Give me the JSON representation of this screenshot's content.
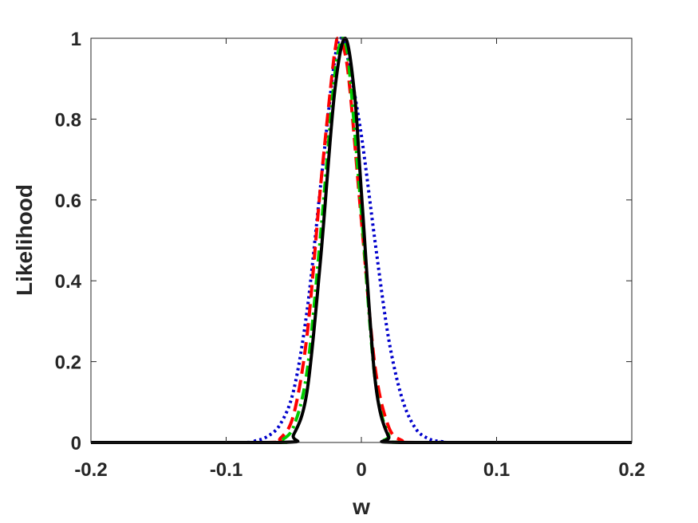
{
  "chart_data": {
    "type": "line",
    "title": "",
    "xlabel": "w",
    "ylabel": "Likelihood",
    "xlim": [
      -0.2,
      0.2
    ],
    "ylim": [
      0,
      1
    ],
    "grid": false,
    "box": true,
    "x_ticks": [
      -0.2,
      -0.1,
      0,
      0.1,
      0.2
    ],
    "x_tick_labels": [
      "-0.2",
      "-0.1",
      "0",
      "0.1",
      "0.2"
    ],
    "y_ticks": [
      0,
      0.2,
      0.4,
      0.6,
      0.8,
      1
    ],
    "y_tick_labels": [
      "0",
      "0.2",
      "0.4",
      "0.6",
      "0.8",
      "1"
    ],
    "series": [
      {
        "color": "#0000cc",
        "style": "dotted",
        "x": [
          -0.2,
          -0.09,
          -0.08,
          -0.07,
          -0.06,
          -0.05,
          -0.04,
          -0.03,
          -0.02,
          -0.015,
          -0.01,
          0,
          0.01,
          0.02,
          0.03,
          0.04,
          0.05,
          0.06,
          0.07,
          0.2
        ],
        "y": [
          0,
          0.0,
          0.003,
          0.014,
          0.045,
          0.13,
          0.33,
          0.64,
          0.94,
          1.0,
          0.95,
          0.76,
          0.5,
          0.26,
          0.11,
          0.035,
          0.009,
          0.002,
          0.0,
          0
        ]
      },
      {
        "color": "#ff0000",
        "style": "dashed",
        "x": [
          -0.2,
          -0.07,
          -0.06,
          -0.05,
          -0.04,
          -0.03,
          -0.02,
          -0.017,
          -0.01,
          0,
          0.01,
          0.02,
          0.03,
          0.04,
          0.2
        ],
        "y": [
          0,
          0.0,
          0.01,
          0.07,
          0.27,
          0.64,
          0.96,
          1.0,
          0.92,
          0.55,
          0.19,
          0.04,
          0.005,
          0.0,
          0
        ]
      },
      {
        "color": "#00cc00",
        "style": "dashdot",
        "x": [
          -0.2,
          -0.065,
          -0.06,
          -0.05,
          -0.04,
          -0.03,
          -0.02,
          -0.014,
          -0.01,
          0,
          0.01,
          0.02,
          0.03,
          0.2
        ],
        "y": [
          0,
          0.0,
          0.004,
          0.04,
          0.18,
          0.52,
          0.9,
          1.0,
          0.96,
          0.57,
          0.16,
          0.02,
          0.0,
          0
        ]
      },
      {
        "color": "#000000",
        "style": "solid",
        "x": [
          -0.2,
          -0.06,
          -0.05,
          -0.04,
          -0.03,
          -0.02,
          -0.012,
          -0.005,
          0,
          0.01,
          0.02,
          0.03,
          0.2
        ],
        "y": [
          0,
          0.0,
          0.02,
          0.13,
          0.46,
          0.86,
          1.0,
          0.86,
          0.62,
          0.16,
          0.015,
          0.0,
          0
        ]
      }
    ]
  }
}
